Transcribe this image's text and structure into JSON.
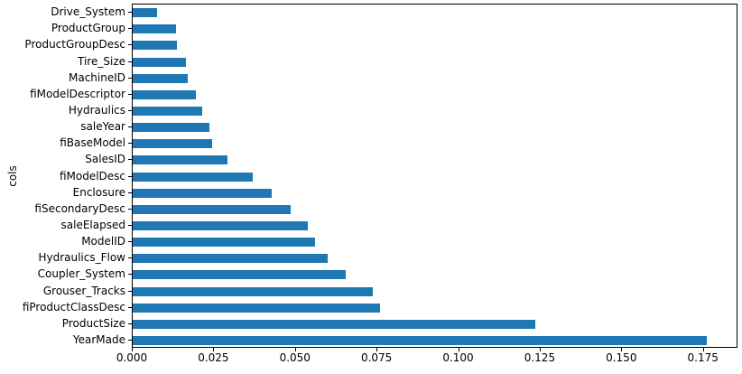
{
  "figure": {
    "background_color": "#ffffff",
    "spine_color": "#000000",
    "text_color": "#000000"
  },
  "chart_data": {
    "type": "bar",
    "orientation": "horizontal",
    "title": "",
    "xlabel": "",
    "ylabel": "cols",
    "bar_color": "#1f77b4",
    "grid": false,
    "legend": null,
    "categories_top_to_bottom": [
      "Drive_System",
      "ProductGroup",
      "ProductGroupDesc",
      "Tire_Size",
      "MachineID",
      "fiModelDescriptor",
      "Hydraulics",
      "saleYear",
      "fiBaseModel",
      "SalesID",
      "fiModelDesc",
      "Enclosure",
      "fiSecondaryDesc",
      "saleElapsed",
      "ModelID",
      "Hydraulics_Flow",
      "Coupler_System",
      "Grouser_Tracks",
      "fiProductClassDesc",
      "ProductSize",
      "YearMade"
    ],
    "values": [
      0.0075,
      0.0134,
      0.0137,
      0.0165,
      0.0168,
      0.0193,
      0.0214,
      0.0236,
      0.0244,
      0.0291,
      0.037,
      0.0428,
      0.0485,
      0.0539,
      0.056,
      0.06,
      0.0655,
      0.0737,
      0.0761,
      0.1237,
      0.1764
    ],
    "xlim": [
      0,
      0.1856
    ],
    "xtick_values": [
      0.0,
      0.025,
      0.05,
      0.075,
      0.1,
      0.125,
      0.15,
      0.175
    ],
    "xtick_labels": [
      "0.000",
      "0.025",
      "0.050",
      "0.075",
      "0.100",
      "0.125",
      "0.150",
      "0.175"
    ]
  }
}
